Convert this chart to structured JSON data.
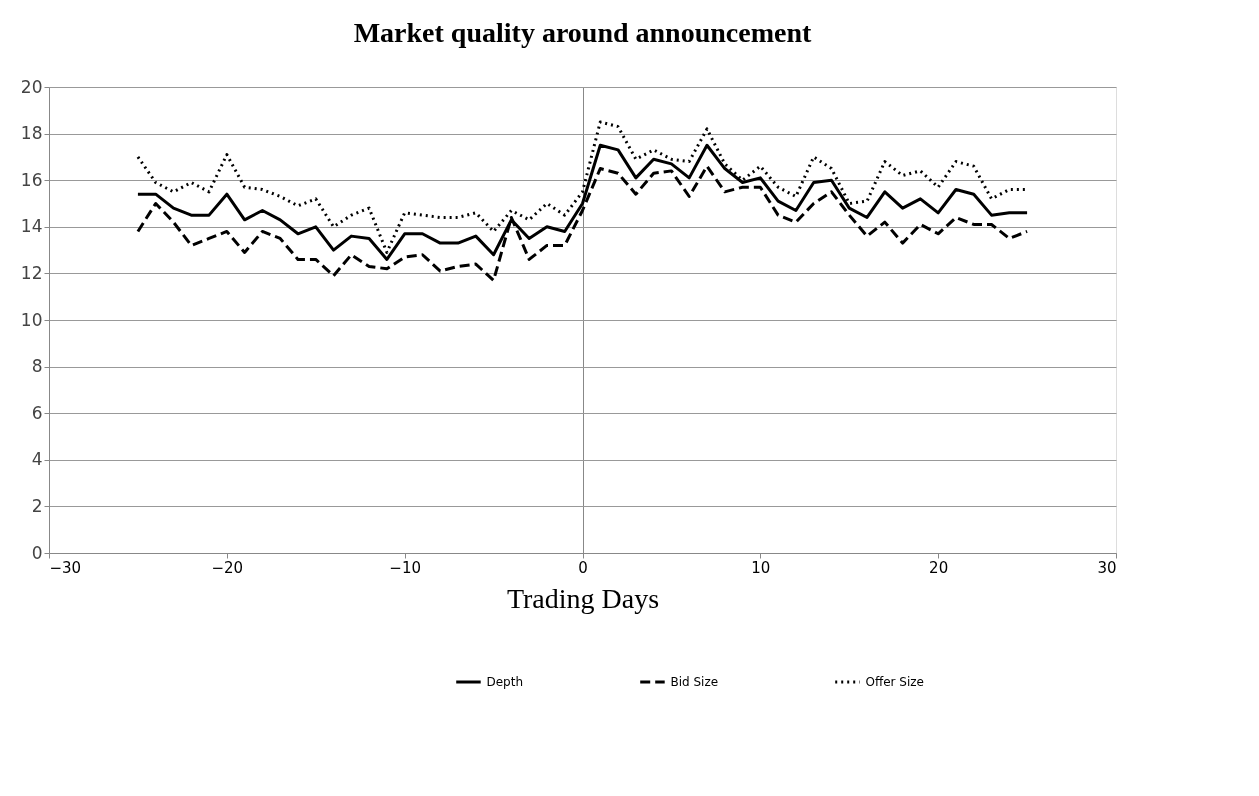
{
  "chart_data": {
    "type": "line",
    "title": "Market quality around announcement",
    "xlabel": "Trading Days",
    "x": [
      -25,
      -24,
      -23,
      -22,
      -21,
      -20,
      -19,
      -18,
      -17,
      -16,
      -15,
      -14,
      -13,
      -12,
      -11,
      -10,
      -9,
      -8,
      -7,
      -6,
      -5,
      -4,
      -3,
      -2,
      -1,
      0,
      1,
      2,
      3,
      4,
      5,
      6,
      7,
      8,
      9,
      10,
      11,
      12,
      13,
      14,
      15,
      16,
      17,
      18,
      19,
      20,
      21,
      22,
      23,
      24,
      25
    ],
    "series": [
      {
        "name": "Depth",
        "color": "#000000",
        "line_style": "solid",
        "values": [
          15.4,
          15.4,
          14.8,
          14.5,
          14.5,
          15.4,
          14.3,
          14.7,
          14.3,
          13.7,
          14.0,
          13.0,
          13.6,
          13.5,
          12.6,
          13.7,
          13.7,
          13.3,
          13.3,
          13.6,
          12.8,
          14.3,
          13.5,
          14.0,
          13.8,
          15.0,
          17.5,
          17.3,
          16.1,
          16.9,
          16.7,
          16.1,
          17.5,
          16.5,
          15.9,
          16.1,
          15.1,
          14.7,
          15.9,
          16.0,
          14.8,
          14.4,
          15.5,
          14.8,
          15.2,
          14.6,
          15.6,
          15.4,
          14.5,
          14.6,
          14.6
        ]
      },
      {
        "name": "Bid Size",
        "color": "#000000",
        "line_style": "dashed",
        "values": [
          13.8,
          15.0,
          14.2,
          13.2,
          13.5,
          13.8,
          12.9,
          13.8,
          13.5,
          12.6,
          12.6,
          11.9,
          12.8,
          12.3,
          12.2,
          12.7,
          12.8,
          12.1,
          12.3,
          12.4,
          11.7,
          14.4,
          12.6,
          13.2,
          13.2,
          14.7,
          16.5,
          16.3,
          15.4,
          16.3,
          16.4,
          15.3,
          16.6,
          15.5,
          15.7,
          15.7,
          14.5,
          14.2,
          15.0,
          15.5,
          14.5,
          13.6,
          14.2,
          13.3,
          14.1,
          13.7,
          14.4,
          14.1,
          14.1,
          13.5,
          13.8
        ]
      },
      {
        "name": "Offer Size",
        "color": "#000000",
        "line_style": "dotted",
        "values": [
          17.0,
          15.9,
          15.5,
          15.9,
          15.5,
          17.1,
          15.7,
          15.6,
          15.3,
          14.9,
          15.2,
          14.0,
          14.5,
          14.8,
          12.9,
          14.6,
          14.5,
          14.4,
          14.4,
          14.6,
          13.8,
          14.7,
          14.3,
          15.0,
          14.5,
          15.5,
          18.5,
          18.3,
          16.9,
          17.3,
          16.9,
          16.8,
          18.2,
          16.7,
          16.0,
          16.6,
          15.7,
          15.3,
          17.0,
          16.5,
          15.0,
          15.1,
          16.8,
          16.2,
          16.4,
          15.7,
          16.8,
          16.6,
          15.2,
          15.6,
          15.6
        ]
      }
    ],
    "xlim": [
      -30,
      30
    ],
    "xticks": [
      -30,
      -20,
      -10,
      0,
      10,
      20,
      30
    ],
    "ylim": [
      0,
      20
    ],
    "yticks": [
      0,
      2,
      4,
      6,
      8,
      10,
      12,
      14,
      16,
      18,
      20
    ],
    "grid": "y",
    "legend": "bottom",
    "marker": "none"
  }
}
